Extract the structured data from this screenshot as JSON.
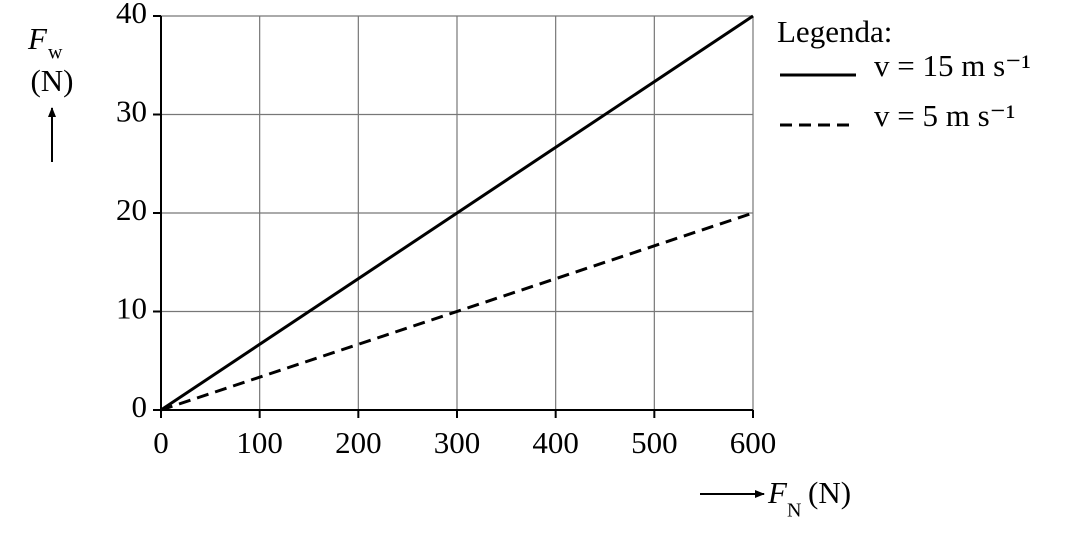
{
  "chart_data": {
    "type": "line",
    "x": [
      0,
      600
    ],
    "series": [
      {
        "name": "v = 15 m s⁻¹",
        "color": "#000000",
        "style": "solid",
        "values": [
          0,
          40
        ]
      },
      {
        "name": "v = 5 m s⁻¹",
        "color": "#000000",
        "style": "dashed",
        "values": [
          0,
          20
        ]
      }
    ],
    "xlim": [
      0,
      600
    ],
    "xticks": [
      0,
      100,
      200,
      300,
      400,
      500,
      600
    ],
    "ylim": [
      0,
      40
    ],
    "yticks": [
      0,
      10,
      20,
      30,
      40
    ],
    "grid": true,
    "legend_title": "Legenda:",
    "legend_position": "right",
    "ylabel": {
      "symbol": "F",
      "subscript": "w",
      "unit": "(N)"
    },
    "xlabel": {
      "symbol": "F",
      "subscript": "N",
      "unit": "(N)"
    }
  }
}
